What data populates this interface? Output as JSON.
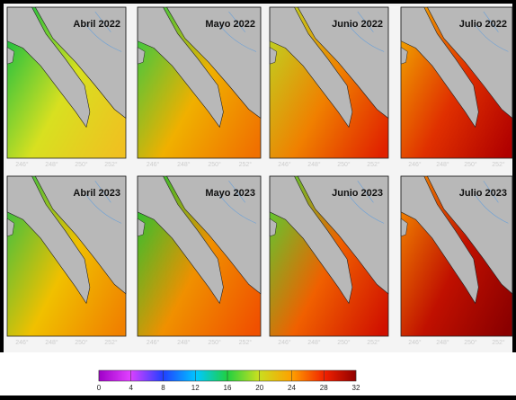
{
  "panels": [
    {
      "title": "Abril 2022"
    },
    {
      "title": "Mayo 2022"
    },
    {
      "title": "Junio 2022"
    },
    {
      "title": "Julio 2022"
    },
    {
      "title": "Abril 2023"
    },
    {
      "title": "Mayo 2023"
    },
    {
      "title": "Junio 2023"
    },
    {
      "title": "Julio 2023"
    }
  ],
  "lon_labels": [
    "246°",
    "248°",
    "250°",
    "252°"
  ],
  "colorbar": {
    "lim": [
      0,
      32
    ],
    "ticks": [
      0,
      4,
      8,
      12,
      16,
      20,
      24,
      28,
      32
    ]
  }
}
